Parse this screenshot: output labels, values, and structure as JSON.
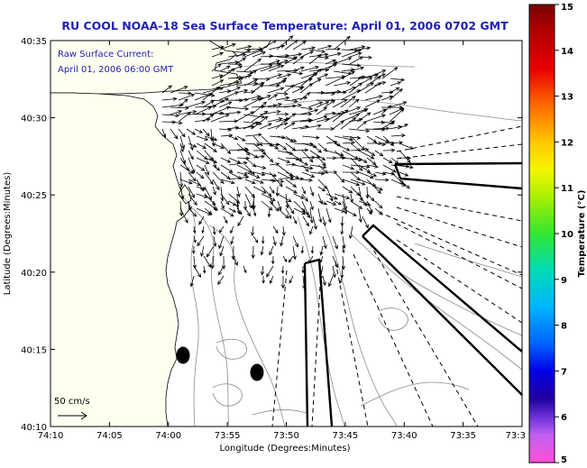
{
  "title": "RU COOL  NOAA-18  Sea Surface Temperature:  April 01, 2006 0702 GMT",
  "overlay": {
    "line1": "Raw Surface Current:",
    "line2": "April 01, 2006 06:00 GMT"
  },
  "scale": {
    "label": "50 cm/s"
  },
  "axes": {
    "xlabel": "Longitude (Degrees:Minutes)",
    "ylabel": "Latitude (Degrees:Minutes)",
    "xticks": [
      "74:10",
      "74:05",
      "74:00",
      "73:55",
      "73:50",
      "73:45",
      "73:40",
      "73:35",
      "73:3"
    ],
    "yticks": [
      "40:35",
      "40:30",
      "40:25",
      "40:20",
      "40:15",
      "40:10"
    ]
  },
  "colorbar": {
    "label": "Temperature (°C)",
    "ticks": [
      "15",
      "14",
      "13",
      "12",
      "11",
      "10",
      "9",
      "8",
      "7",
      "6",
      "5"
    ]
  },
  "colors": {
    "title": "#1f1fb4",
    "overlay_text": "#1f1fb4",
    "land": "#fffff0",
    "vector": "#000000",
    "contour": "#8c8c8c"
  }
}
